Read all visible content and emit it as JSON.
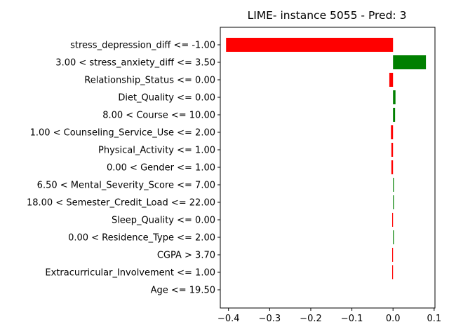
{
  "chart_data": {
    "type": "bar",
    "orientation": "horizontal",
    "title": "LIME- instance 5055 - Pred: 3",
    "xlabel": "",
    "ylabel": "",
    "xlim": [
      -0.42,
      0.102
    ],
    "xticks": [
      -0.4,
      -0.3,
      -0.2,
      -0.1,
      0.0,
      0.1
    ],
    "xtick_labels": [
      "−0.4",
      "−0.3",
      "−0.2",
      "−0.1",
      "0.0",
      "0.1"
    ],
    "grid": false,
    "legend": "none",
    "colors": {
      "positive": "#008000",
      "negative": "#ff0000"
    },
    "categories": [
      "stress_depression_diff <= -1.00",
      "3.00 < stress_anxiety_diff <= 3.50",
      "Relationship_Status <= 0.00",
      "Diet_Quality <= 0.00",
      "8.00 < Course <= 10.00",
      "1.00 < Counseling_Service_Use <= 2.00",
      "Physical_Activity <= 1.00",
      "0.00 < Gender <= 1.00",
      "6.50 < Mental_Severity_Score <= 7.00",
      "18.00 < Semester_Credit_Load <= 22.00",
      "Sleep_Quality <= 0.00",
      "0.00 < Residence_Type <= 2.00",
      "CGPA > 3.70",
      "Extracurricular_Involvement <= 1.00",
      "Age <= 19.50"
    ],
    "values": [
      -0.406,
      0.08,
      -0.009,
      0.006,
      0.005,
      -0.005,
      -0.004,
      -0.004,
      0.002,
      0.002,
      -0.002,
      0.002,
      -0.002,
      -0.002,
      0.0
    ]
  }
}
